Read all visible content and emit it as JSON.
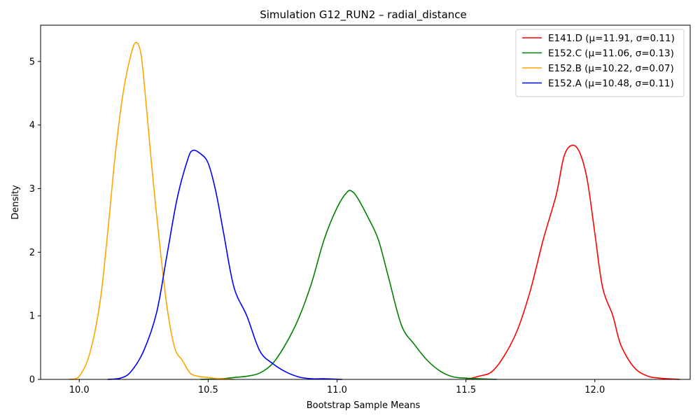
{
  "chart_data": {
    "type": "line",
    "title": "Simulation G12_RUN2 – radial_distance",
    "xlabel": "Bootstrap Sample Means",
    "ylabel": "Density",
    "xlim": [
      9.85,
      12.37
    ],
    "ylim": [
      0,
      5.57
    ],
    "xticks": [
      10.0,
      10.5,
      11.0,
      11.5,
      12.0
    ],
    "xtick_labels": [
      "10.0",
      "10.5",
      "11.0",
      "11.5",
      "12.0"
    ],
    "yticks": [
      0,
      1,
      2,
      3,
      4,
      5
    ],
    "ytick_labels": [
      "0",
      "1",
      "2",
      "3",
      "4",
      "5"
    ],
    "grid": false,
    "legend_position": "top-right",
    "series": [
      {
        "name": "E141.D (μ=11.91, σ=0.11)",
        "color": "#ff0000",
        "x": [
          11.5,
          11.55,
          11.6,
          11.65,
          11.7,
          11.75,
          11.8,
          11.85,
          11.88,
          11.91,
          11.94,
          11.97,
          12.0,
          12.03,
          12.07,
          12.1,
          12.15,
          12.2,
          12.25,
          12.33
        ],
        "y": [
          0.0,
          0.05,
          0.12,
          0.38,
          0.78,
          1.4,
          2.2,
          2.9,
          3.5,
          3.68,
          3.58,
          3.15,
          2.3,
          1.45,
          1.0,
          0.55,
          0.2,
          0.06,
          0.02,
          0.0
        ]
      },
      {
        "name": "E152.C (μ=11.06, σ=0.13)",
        "color": "#008000",
        "x": [
          10.47,
          10.55,
          10.6,
          10.65,
          10.7,
          10.75,
          10.8,
          10.85,
          10.9,
          10.95,
          11.0,
          11.04,
          11.06,
          11.08,
          11.12,
          11.16,
          11.2,
          11.25,
          11.3,
          11.35,
          11.4,
          11.45,
          11.5,
          11.55,
          11.62
        ],
        "y": [
          0.0,
          0.01,
          0.03,
          0.05,
          0.1,
          0.25,
          0.55,
          0.95,
          1.5,
          2.2,
          2.7,
          2.95,
          2.95,
          2.85,
          2.55,
          2.2,
          1.6,
          0.85,
          0.55,
          0.3,
          0.13,
          0.04,
          0.02,
          0.01,
          0.0
        ]
      },
      {
        "name": "E152.B (μ=10.22, σ=0.07)",
        "color": "#ffa500",
        "x": [
          9.96,
          10.0,
          10.04,
          10.08,
          10.11,
          10.14,
          10.17,
          10.2,
          10.22,
          10.24,
          10.26,
          10.28,
          10.31,
          10.34,
          10.37,
          10.4,
          10.43,
          10.46,
          10.5,
          10.55,
          10.6
        ],
        "y": [
          0.0,
          0.05,
          0.4,
          1.2,
          2.3,
          3.55,
          4.5,
          5.1,
          5.3,
          5.1,
          4.3,
          3.4,
          2.2,
          1.15,
          0.5,
          0.3,
          0.1,
          0.05,
          0.03,
          0.01,
          0.0
        ]
      },
      {
        "name": "E152.A (μ=10.48, σ=0.11)",
        "color": "#0000ff",
        "x": [
          10.11,
          10.16,
          10.2,
          10.25,
          10.3,
          10.34,
          10.38,
          10.42,
          10.44,
          10.47,
          10.5,
          10.53,
          10.56,
          10.6,
          10.65,
          10.7,
          10.75,
          10.8,
          10.85,
          10.9,
          10.95,
          11.02
        ],
        "y": [
          0.0,
          0.02,
          0.12,
          0.45,
          1.05,
          1.95,
          2.85,
          3.45,
          3.6,
          3.55,
          3.4,
          2.95,
          2.3,
          1.45,
          1.0,
          0.45,
          0.25,
          0.12,
          0.04,
          0.01,
          0.01,
          0.0
        ]
      }
    ]
  }
}
